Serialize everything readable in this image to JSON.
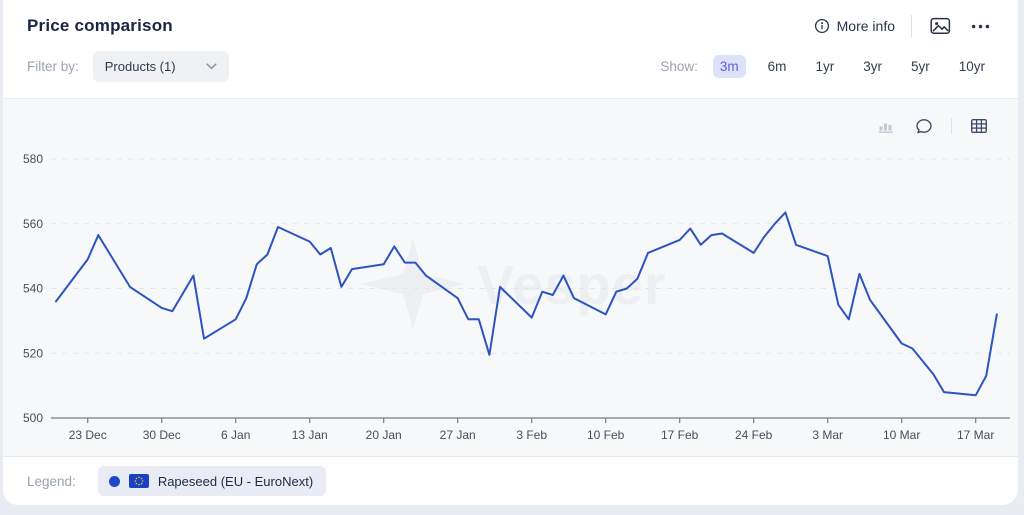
{
  "header": {
    "title": "Price comparison",
    "more_info_label": "More info"
  },
  "filter": {
    "label": "Filter by:",
    "dropdown_value": "Products (1)"
  },
  "show": {
    "label": "Show:",
    "options": [
      "3m",
      "6m",
      "1yr",
      "3yr",
      "5yr",
      "10yr"
    ],
    "selected": "3m"
  },
  "watermark": "Vesper",
  "legend": {
    "label": "Legend:",
    "series_label": "Rapeseed (EU - EuroNext)"
  },
  "colors": {
    "line": "#2d53c0",
    "accent": "#5863d8",
    "accent_bg": "#dee1fa",
    "chart_bg": "#f7f8fa",
    "page_bg": "#e9edf3",
    "eu_flag_blue": "#1941c6",
    "eu_star_yellow": "#f5c518",
    "muted_text": "#9aa1b1",
    "dark_text": "#1a2544"
  },
  "chart_data": {
    "type": "line",
    "title": "Price comparison",
    "xlabel": "",
    "ylabel": "",
    "ylim": [
      500,
      580
    ],
    "y_ticks": [
      500,
      520,
      540,
      560,
      580
    ],
    "grid": "horizontal-dashed",
    "grid_color": "#e3e5ea",
    "axis_color": "#747b89",
    "label_color": "#464e5d",
    "legend_position": "bottom",
    "x_ticks": [
      {
        "day": 3,
        "label": "23 Dec"
      },
      {
        "day": 10,
        "label": "30 Dec"
      },
      {
        "day": 17,
        "label": "6 Jan"
      },
      {
        "day": 24,
        "label": "13 Jan"
      },
      {
        "day": 31,
        "label": "20 Jan"
      },
      {
        "day": 38,
        "label": "27 Jan"
      },
      {
        "day": 45,
        "label": "3 Feb"
      },
      {
        "day": 52,
        "label": "10 Feb"
      },
      {
        "day": 59,
        "label": "17 Feb"
      },
      {
        "day": 66,
        "label": "24 Feb"
      },
      {
        "day": 73,
        "label": "3 Mar"
      },
      {
        "day": 80,
        "label": "10 Mar"
      },
      {
        "day": 87,
        "label": "17 Mar"
      }
    ],
    "series": [
      {
        "name": "Rapeseed (EU - EuroNext)",
        "color": "#2d53c0",
        "points": [
          {
            "date": "20 Dec",
            "day": 0,
            "value": 536
          },
          {
            "date": "23 Dec",
            "day": 3,
            "value": 549
          },
          {
            "date": "24 Dec",
            "day": 4,
            "value": 556.5
          },
          {
            "date": "27 Dec",
            "day": 7,
            "value": 540.5
          },
          {
            "date": "30 Dec",
            "day": 10,
            "value": 534
          },
          {
            "date": "31 Dec",
            "day": 11,
            "value": 533
          },
          {
            "date": "2 Jan",
            "day": 13,
            "value": 544
          },
          {
            "date": "3 Jan",
            "day": 14,
            "value": 524.5
          },
          {
            "date": "6 Jan",
            "day": 17,
            "value": 530.5
          },
          {
            "date": "7 Jan",
            "day": 18,
            "value": 537
          },
          {
            "date": "8 Jan",
            "day": 19,
            "value": 547.5
          },
          {
            "date": "9 Jan",
            "day": 20,
            "value": 550.5
          },
          {
            "date": "10 Jan",
            "day": 21,
            "value": 559
          },
          {
            "date": "13 Jan",
            "day": 24,
            "value": 554.5
          },
          {
            "date": "14 Jan",
            "day": 25,
            "value": 550.5
          },
          {
            "date": "15 Jan",
            "day": 26,
            "value": 552.5
          },
          {
            "date": "16 Jan",
            "day": 27,
            "value": 540.5
          },
          {
            "date": "17 Jan",
            "day": 28,
            "value": 546
          },
          {
            "date": "20 Jan",
            "day": 31,
            "value": 547.5
          },
          {
            "date": "21 Jan",
            "day": 32,
            "value": 553
          },
          {
            "date": "22 Jan",
            "day": 33,
            "value": 548
          },
          {
            "date": "23 Jan",
            "day": 34,
            "value": 548
          },
          {
            "date": "24 Jan",
            "day": 35,
            "value": 544
          },
          {
            "date": "27 Jan",
            "day": 38,
            "value": 537
          },
          {
            "date": "28 Jan",
            "day": 39,
            "value": 530.5
          },
          {
            "date": "29 Jan",
            "day": 40,
            "value": 530.5
          },
          {
            "date": "30 Jan",
            "day": 41,
            "value": 519.5
          },
          {
            "date": "31 Jan",
            "day": 42,
            "value": 540.5
          },
          {
            "date": "3 Feb",
            "day": 45,
            "value": 531
          },
          {
            "date": "4 Feb",
            "day": 46,
            "value": 539
          },
          {
            "date": "5 Feb",
            "day": 47,
            "value": 538
          },
          {
            "date": "6 Feb",
            "day": 48,
            "value": 544
          },
          {
            "date": "7 Feb",
            "day": 49,
            "value": 537
          },
          {
            "date": "10 Feb",
            "day": 52,
            "value": 532
          },
          {
            "date": "11 Feb",
            "day": 53,
            "value": 539
          },
          {
            "date": "12 Feb",
            "day": 54,
            "value": 540
          },
          {
            "date": "13 Feb",
            "day": 55,
            "value": 543
          },
          {
            "date": "14 Feb",
            "day": 56,
            "value": 551
          },
          {
            "date": "17 Feb",
            "day": 59,
            "value": 555
          },
          {
            "date": "18 Feb",
            "day": 60,
            "value": 558.5
          },
          {
            "date": "19 Feb",
            "day": 61,
            "value": 553.5
          },
          {
            "date": "20 Feb",
            "day": 62,
            "value": 556.5
          },
          {
            "date": "21 Feb",
            "day": 63,
            "value": 557
          },
          {
            "date": "24 Feb",
            "day": 66,
            "value": 551
          },
          {
            "date": "25 Feb",
            "day": 67,
            "value": 556
          },
          {
            "date": "26 Feb",
            "day": 68,
            "value": 560
          },
          {
            "date": "27 Feb",
            "day": 69,
            "value": 563.5
          },
          {
            "date": "28 Feb",
            "day": 70,
            "value": 553.5
          },
          {
            "date": "3 Mar",
            "day": 73,
            "value": 550
          },
          {
            "date": "4 Mar",
            "day": 74,
            "value": 535
          },
          {
            "date": "5 Mar",
            "day": 75,
            "value": 530.5
          },
          {
            "date": "6 Mar",
            "day": 76,
            "value": 544.5
          },
          {
            "date": "7 Mar",
            "day": 77,
            "value": 536.5
          },
          {
            "date": "10 Mar",
            "day": 80,
            "value": 523
          },
          {
            "date": "11 Mar",
            "day": 81,
            "value": 521.5
          },
          {
            "date": "12 Mar",
            "day": 82,
            "value": 517.5
          },
          {
            "date": "13 Mar",
            "day": 83,
            "value": 513.5
          },
          {
            "date": "14 Mar",
            "day": 84,
            "value": 508
          },
          {
            "date": "17 Mar",
            "day": 87,
            "value": 507
          },
          {
            "date": "18 Mar",
            "day": 88,
            "value": 513
          },
          {
            "date": "19 Mar",
            "day": 89,
            "value": 532
          }
        ]
      }
    ]
  }
}
